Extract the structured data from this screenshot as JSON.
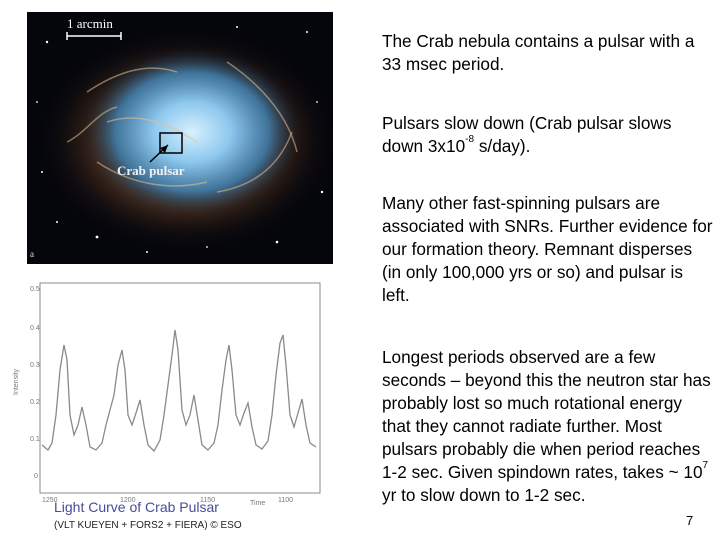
{
  "nebula_image": {
    "scale_label": "1 arcmin",
    "pulsar_label": "Crab pulsar",
    "panel_letter": "a"
  },
  "light_curve_image": {
    "title": "Light Curve of Crab Pulsar",
    "credit": "(VLT KUEYEN + FORS2 + FIERA) © ESO",
    "y_axis_label": "Intensity",
    "x_axis_label": "Time",
    "y_ticks": [
      "0.5",
      "0.4",
      "0.3",
      "0.2",
      "0.1",
      "0"
    ],
    "x_ticks": [
      "1250",
      "1200",
      "1150",
      "1100"
    ]
  },
  "text": {
    "p1": "The Crab nebula contains a pulsar with a 33 msec period.",
    "p2_before": "Pulsars slow down (Crab pulsar slows down 3x10",
    "p2_exp": "-8",
    "p2_after": " s/day).",
    "p3": "Many other fast-spinning pulsars are associated with SNRs.  Further evidence for our formation theory. Remnant disperses (in only 100,000 yrs or so) and pulsar is left.",
    "p4_before": "Longest periods observed are a few seconds – beyond this the neutron star has probably lost so much rotational energy that they cannot radiate further.  Most pulsars probably die when period reaches 1-2 sec.  Given spindown rates, takes ~ 10",
    "p4_exp": "7",
    "p4_after": " yr to slow down to 1-2 sec."
  },
  "slide_number": "7"
}
